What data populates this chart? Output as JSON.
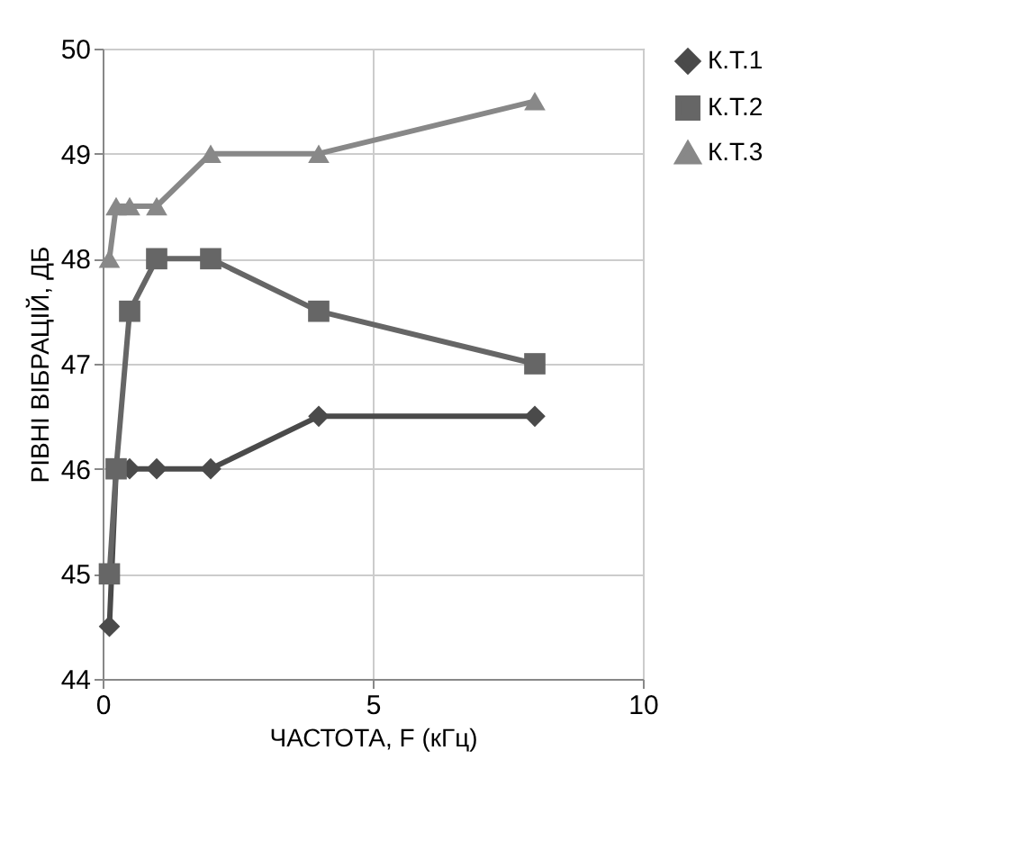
{
  "chart_data": {
    "type": "line",
    "xlabel": "ЧАСТОТА, F (кГц)",
    "ylabel": "РІВНІ ВІБРАЦІЙ, ДБ",
    "x": [
      0.125,
      0.25,
      0.5,
      1,
      2,
      4,
      8
    ],
    "series": [
      {
        "name": "К.Т.1",
        "color": "#4a4a4a",
        "marker": "diamond",
        "values": [
          44.5,
          46,
          46,
          46,
          46,
          46.5,
          46.5
        ]
      },
      {
        "name": "К.Т.2",
        "color": "#666666",
        "marker": "square",
        "values": [
          45,
          46,
          47.5,
          48,
          48,
          47.5,
          47
        ]
      },
      {
        "name": "К.Т.3",
        "color": "#888888",
        "marker": "triangle",
        "values": [
          48,
          48.5,
          48.5,
          48.5,
          49,
          49,
          49.5
        ]
      }
    ],
    "xlim": [
      0,
      10
    ],
    "xticks": [
      0,
      5,
      10
    ],
    "ylim": [
      44,
      50
    ],
    "yticks": [
      44,
      45,
      46,
      47,
      48,
      49,
      50
    ],
    "grid": true,
    "legend": "right",
    "line_style": "solid"
  }
}
